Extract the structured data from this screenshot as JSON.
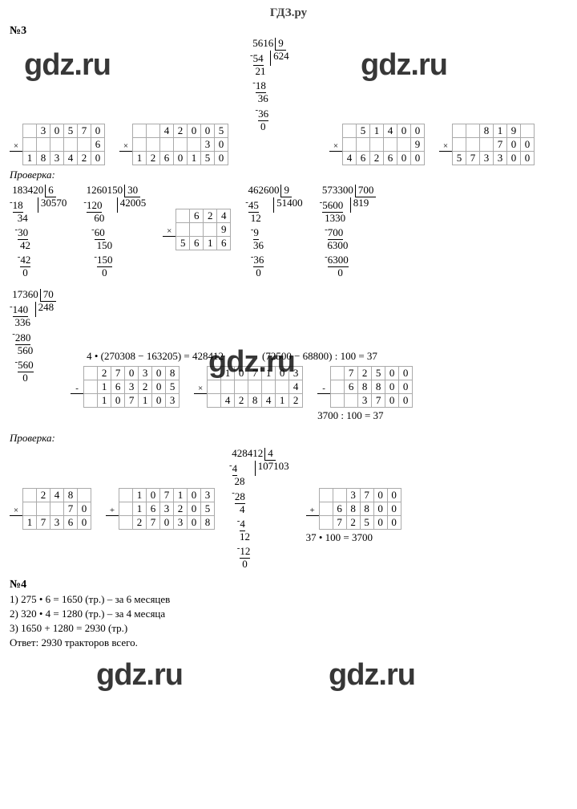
{
  "header": "ГДЗ.ру",
  "watermark": "gdz.ru",
  "sec3": {
    "title": "№3",
    "check_label": "Проверка:",
    "mul1": {
      "r1": [
        "",
        "3",
        "0",
        "5",
        "7",
        "0"
      ],
      "r2": [
        "",
        "",
        "",
        "",
        "",
        "6"
      ],
      "r3": [
        "1",
        "8",
        "3",
        "4",
        "2",
        "0"
      ]
    },
    "mul2": {
      "r1": [
        "",
        "4",
        "2",
        "0",
        "0",
        "5"
      ],
      "r2": [
        "",
        "",
        "",
        "",
        "3",
        "0"
      ],
      "r3": [
        "1",
        "2",
        "6",
        "0",
        "1",
        "5",
        "0"
      ]
    },
    "mul3": {
      "r1": [
        "",
        "5",
        "1",
        "4",
        "0",
        "0"
      ],
      "r2": [
        "",
        "",
        "",
        "",
        "",
        "9"
      ],
      "r3": [
        "4",
        "6",
        "2",
        "6",
        "0",
        "0"
      ]
    },
    "mul4": {
      "r1": [
        "",
        "",
        "8",
        "1",
        "9",
        ""
      ],
      "r2": [
        "",
        "",
        "",
        "7",
        "0",
        "0"
      ],
      "r3": [
        "5",
        "7",
        "3",
        "3",
        "0",
        "0"
      ]
    },
    "ld_top": "5616|9 → 624",
    "ld1": {
      "dividend": "183420",
      "divisor": "6",
      "quot": "30570",
      "steps": [
        "⁻18",
        " 0̄3̄4",
        "⁻30",
        "  4̄2",
        " ⁻42",
        "   0̄"
      ]
    },
    "ld2": {
      "dividend": "1260150",
      "divisor": "30",
      "quot": "42005",
      "steps": [
        "⁻120",
        "   6̄0",
        "  ⁻60",
        "    1̄5̄0",
        "   ⁻150",
        "      0̄"
      ]
    },
    "mul_624": {
      "r1": [
        "",
        "6",
        "2",
        "4"
      ],
      "r2": [
        "",
        "",
        "",
        "9"
      ],
      "r3": [
        "5",
        "6",
        "1",
        "6"
      ]
    },
    "ld3": {
      "dividend": "462600",
      "divisor": "9",
      "quot": "51400",
      "steps": [
        "⁻45",
        "  1̄2",
        "  ⁻9",
        "   3̄6",
        "  ⁻36",
        "    0̄"
      ]
    },
    "ld4": {
      "dividend": "573300",
      "divisor": "700",
      "quot": "819",
      "steps": [
        "⁻5600",
        "  1330",
        "  ⁻700",
        "   6300",
        "  ⁻6300",
        "      0"
      ]
    },
    "ld5": {
      "dividend": "17360",
      "divisor": "70",
      "quot": "248",
      "steps": [
        "⁻140",
        "  336",
        " ⁻280",
        "   560",
        "  ⁻560",
        "     0"
      ]
    },
    "expr1": "4 • (270308 − 163205) = 428412",
    "expr2": "(72500 − 68800) : 100 = 37",
    "sub1": {
      "r1": [
        "",
        "2",
        "7",
        "0",
        "3",
        "0",
        "8"
      ],
      "r2": [
        "",
        "1",
        "6",
        "3",
        "2",
        "0",
        "5"
      ],
      "r3": [
        "",
        "1",
        "0",
        "7",
        "1",
        "0",
        "3"
      ]
    },
    "mul5": {
      "r1": [
        "",
        "1",
        "0",
        "7",
        "1",
        "0",
        "3"
      ],
      "r2": [
        "",
        "",
        "",
        "",
        "",
        "",
        "4"
      ],
      "r3": [
        "",
        "4",
        "2",
        "8",
        "4",
        "1",
        "2"
      ]
    },
    "sub2": {
      "r1": [
        "",
        "7",
        "2",
        "5",
        "0",
        "0"
      ],
      "r2": [
        "",
        "6",
        "8",
        "8",
        "0",
        "0"
      ],
      "r3": [
        "",
        "",
        "3",
        "7",
        "0",
        "0"
      ]
    },
    "expr3": "3700 : 100 = 37",
    "mul6": {
      "r1": [
        "",
        "2",
        "4",
        "8",
        ""
      ],
      "r2": [
        "",
        "",
        "",
        "7",
        "0"
      ],
      "r3": [
        "1",
        "7",
        "3",
        "6",
        "0"
      ]
    },
    "add1": {
      "r1": [
        "",
        "1",
        "0",
        "7",
        "1",
        "0",
        "3"
      ],
      "r2": [
        "",
        "1",
        "6",
        "3",
        "2",
        "0",
        "5"
      ],
      "r3": [
        "",
        "2",
        "7",
        "0",
        "3",
        "0",
        "8"
      ]
    },
    "ld6": {
      "dividend": "428412",
      "divisor": "4",
      "quot": "107103",
      "steps": [
        "⁻4",
        " 0̄28",
        " ⁻28",
        "   4",
        "  ⁻4",
        "   12",
        "  ⁻12",
        "    0"
      ]
    },
    "add2": {
      "r1": [
        "",
        "",
        "3",
        "7",
        "0",
        "0"
      ],
      "r2": [
        "",
        "6",
        "8",
        "8",
        "0",
        "0"
      ],
      "r3": [
        "",
        "7",
        "2",
        "5",
        "0",
        "0"
      ]
    },
    "expr4": "37 • 100 = 3700"
  },
  "sec4": {
    "title": "№4",
    "l1": "1) 275 • 6 = 1650 (тр.) – за 6 месяцев",
    "l2": "2) 320 • 4 = 1280 (тр.) – за 4 месяца",
    "l3": "3) 1650 + 1280 = 2930 (тр.)",
    "l4": "Ответ: 2930 тракторов всего."
  }
}
